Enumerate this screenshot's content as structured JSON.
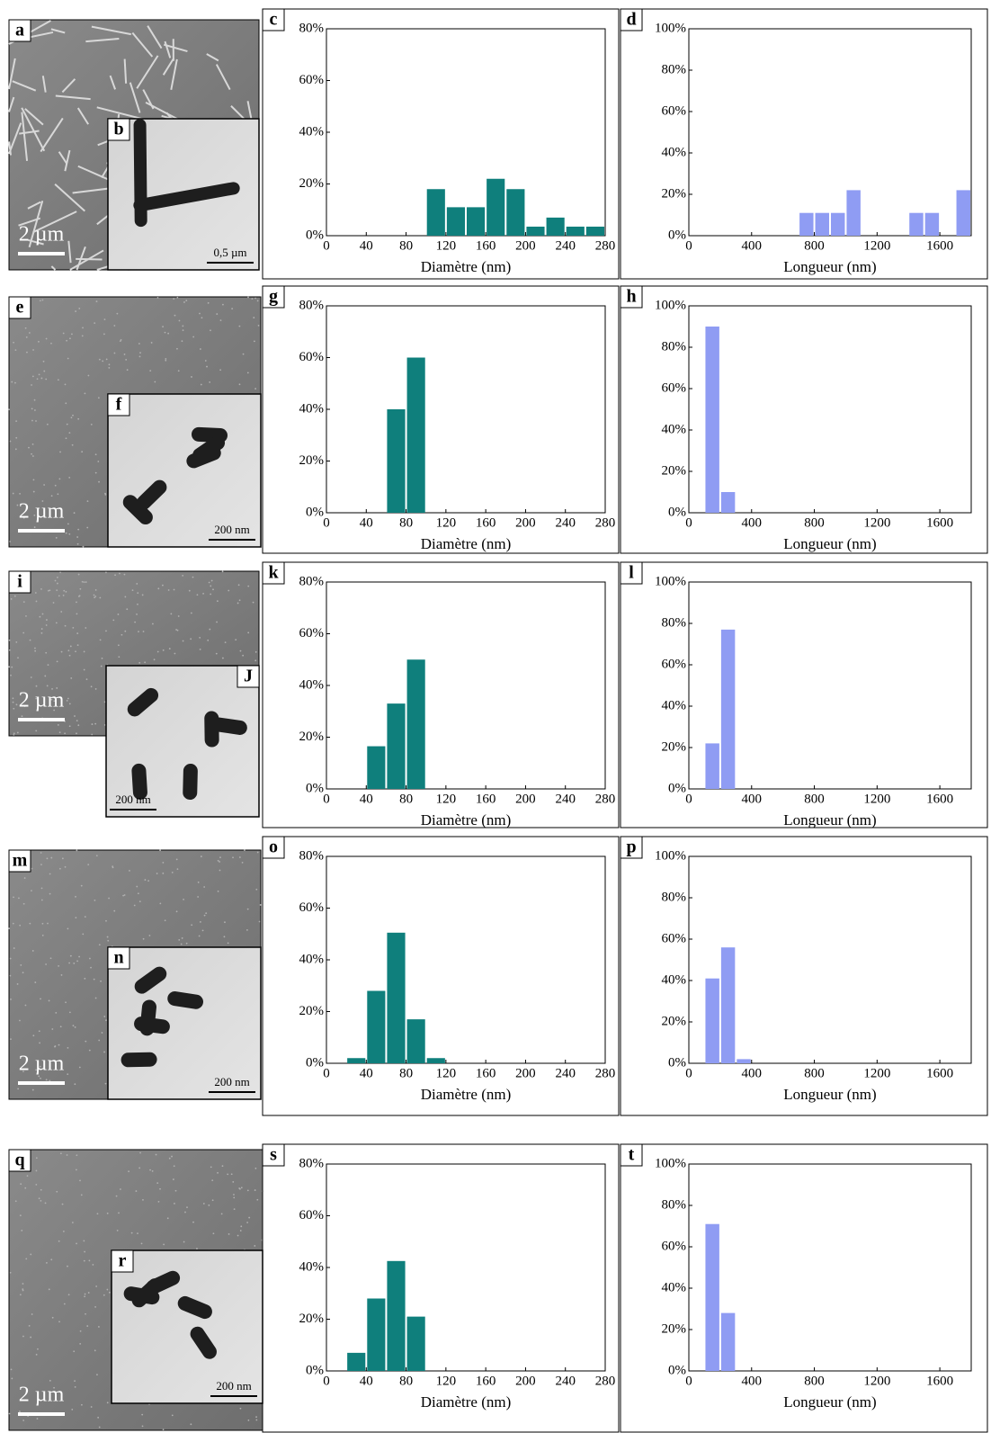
{
  "chart_data": [
    {
      "type": "histogram",
      "label": "c",
      "xlabel": "Diamètre (nm)",
      "color": "#0f7f7c",
      "bins": [
        100,
        120,
        140,
        160,
        180,
        200,
        220,
        240,
        260,
        280
      ],
      "values": [
        18,
        11,
        11,
        22,
        18,
        3.5,
        7,
        3.5,
        3.5
      ],
      "xlim": [
        0,
        280
      ],
      "xticks": [
        0,
        40,
        80,
        120,
        160,
        200,
        240,
        280
      ],
      "ylim": [
        0,
        80
      ],
      "yticks": [
        {
          "value": 0,
          "label": "0%"
        },
        {
          "value": 20,
          "label": "20%"
        },
        {
          "value": 40,
          "label": "40%"
        },
        {
          "value": 60,
          "label": "60%"
        },
        {
          "value": 80,
          "label": "80%"
        }
      ]
    },
    {
      "type": "histogram",
      "label": "d",
      "xlabel": "Longueur (nm)",
      "color": "#8f9cf3",
      "bins": [
        700,
        800,
        900,
        1000,
        1100,
        1200,
        1300,
        1400,
        1500,
        1600,
        1700,
        1800
      ],
      "values": [
        11,
        11,
        11,
        22,
        0,
        0,
        0,
        11,
        11,
        0,
        22
      ],
      "xlim": [
        0,
        1800
      ],
      "xticks": [
        0,
        400,
        800,
        1200,
        1600
      ],
      "ylim": [
        0,
        100
      ],
      "yticks": [
        {
          "value": 0,
          "label": "0%"
        },
        {
          "value": 20,
          "label": "20%"
        },
        {
          "value": 40,
          "label": "40%"
        },
        {
          "value": 60,
          "label": "60%"
        },
        {
          "value": 80,
          "label": "80%"
        },
        {
          "value": 100,
          "label": "100%"
        }
      ]
    },
    {
      "type": "histogram",
      "label": "g",
      "xlabel": "Diamètre (nm)",
      "color": "#0f7f7c",
      "bins": [
        60,
        80,
        100
      ],
      "values": [
        40,
        60
      ],
      "xlim": [
        0,
        280
      ],
      "xticks": [
        0,
        40,
        80,
        120,
        160,
        200,
        240,
        280
      ],
      "ylim": [
        0,
        80
      ],
      "yticks": [
        {
          "value": 0,
          "label": "0%"
        },
        {
          "value": 20,
          "label": "20%"
        },
        {
          "value": 40,
          "label": "40%"
        },
        {
          "value": 60,
          "label": "60%"
        },
        {
          "value": 80,
          "label": "80%"
        }
      ]
    },
    {
      "type": "histogram",
      "label": "h",
      "xlabel": "Longueur (nm)",
      "color": "#8f9cf3",
      "bins": [
        100,
        200,
        300
      ],
      "values": [
        90,
        10
      ],
      "xlim": [
        0,
        1800
      ],
      "xticks": [
        0,
        400,
        800,
        1200,
        1600
      ],
      "ylim": [
        0,
        100
      ],
      "yticks": [
        {
          "value": 0,
          "label": "0%"
        },
        {
          "value": 20,
          "label": "20%"
        },
        {
          "value": 40,
          "label": "40%"
        },
        {
          "value": 60,
          "label": "60%"
        },
        {
          "value": 80,
          "label": "80%"
        },
        {
          "value": 100,
          "label": "100%"
        }
      ]
    },
    {
      "type": "histogram",
      "label": "k",
      "xlabel": "Diamètre (nm)",
      "color": "#0f7f7c",
      "bins": [
        40,
        60,
        80,
        100
      ],
      "values": [
        16.5,
        33,
        50
      ],
      "xlim": [
        0,
        280
      ],
      "xticks": [
        0,
        40,
        80,
        120,
        160,
        200,
        240,
        280
      ],
      "ylim": [
        0,
        80
      ],
      "yticks": [
        {
          "value": 0,
          "label": "0%"
        },
        {
          "value": 20,
          "label": "20%"
        },
        {
          "value": 40,
          "label": "40%"
        },
        {
          "value": 60,
          "label": "60%"
        },
        {
          "value": 80,
          "label": "80%"
        }
      ]
    },
    {
      "type": "histogram",
      "label": "l",
      "xlabel": "Longueur (nm)",
      "color": "#8f9cf3",
      "bins": [
        100,
        200,
        300
      ],
      "values": [
        22,
        77
      ],
      "xlim": [
        0,
        1800
      ],
      "xticks": [
        0,
        400,
        800,
        1200,
        1600
      ],
      "ylim": [
        0,
        100
      ],
      "yticks": [
        {
          "value": 0,
          "label": "0%"
        },
        {
          "value": 20,
          "label": "20%"
        },
        {
          "value": 40,
          "label": "40%"
        },
        {
          "value": 60,
          "label": "60%"
        },
        {
          "value": 80,
          "label": "80%"
        },
        {
          "value": 100,
          "label": "100%"
        }
      ]
    },
    {
      "type": "histogram",
      "label": "o",
      "xlabel": "Diamètre (nm)",
      "color": "#0f7f7c",
      "bins": [
        20,
        40,
        60,
        80,
        100,
        120
      ],
      "values": [
        2,
        28,
        50.5,
        17,
        2
      ],
      "xlim": [
        0,
        280
      ],
      "xticks": [
        0,
        40,
        80,
        120,
        160,
        200,
        240,
        280
      ],
      "ylim": [
        0,
        80
      ],
      "yticks": [
        {
          "value": 0,
          "label": "0%"
        },
        {
          "value": 20,
          "label": "20%"
        },
        {
          "value": 40,
          "label": "40%"
        },
        {
          "value": 60,
          "label": "60%"
        },
        {
          "value": 80,
          "label": "80%"
        }
      ]
    },
    {
      "type": "histogram",
      "label": "p",
      "xlabel": "Longueur (nm)",
      "color": "#8f9cf3",
      "bins": [
        100,
        200,
        300,
        400
      ],
      "values": [
        41,
        56,
        2
      ],
      "xlim": [
        0,
        1800
      ],
      "xticks": [
        0,
        400,
        800,
        1200,
        1600
      ],
      "ylim": [
        0,
        100
      ],
      "yticks": [
        {
          "value": 0,
          "label": "0%"
        },
        {
          "value": 20,
          "label": "20%"
        },
        {
          "value": 40,
          "label": "40%"
        },
        {
          "value": 60,
          "label": "60%"
        },
        {
          "value": 80,
          "label": "80%"
        },
        {
          "value": 100,
          "label": "100%"
        }
      ]
    },
    {
      "type": "histogram",
      "label": "s",
      "xlabel": "Diamètre (nm)",
      "color": "#0f7f7c",
      "bins": [
        20,
        40,
        60,
        80,
        100
      ],
      "values": [
        7,
        28,
        42.5,
        21
      ],
      "xlim": [
        0,
        280
      ],
      "xticks": [
        0,
        40,
        80,
        120,
        160,
        200,
        240,
        280
      ],
      "ylim": [
        0,
        80
      ],
      "yticks": [
        {
          "value": 0,
          "label": "0%"
        },
        {
          "value": 20,
          "label": "20%"
        },
        {
          "value": 40,
          "label": "40%"
        },
        {
          "value": 60,
          "label": "60%"
        },
        {
          "value": 80,
          "label": "80%"
        }
      ]
    },
    {
      "type": "histogram",
      "label": "t",
      "xlabel": "Longueur (nm)",
      "color": "#8f9cf3",
      "bins": [
        100,
        200,
        300
      ],
      "values": [
        71,
        28
      ],
      "xlim": [
        0,
        1800
      ],
      "xticks": [
        0,
        400,
        800,
        1200,
        1600
      ],
      "ylim": [
        0,
        100
      ],
      "yticks": [
        {
          "value": 0,
          "label": "0%"
        },
        {
          "value": 20,
          "label": "20%"
        },
        {
          "value": 40,
          "label": "40%"
        },
        {
          "value": 60,
          "label": "60%"
        },
        {
          "value": 80,
          "label": "80%"
        },
        {
          "value": 100,
          "label": "100%"
        }
      ]
    }
  ],
  "images": [
    {
      "label": "a",
      "scale": "2 µm",
      "inset": {
        "label": "b",
        "scale": "0,5 µm"
      }
    },
    {
      "label": "e",
      "scale": "2 µm",
      "inset": {
        "label": "f",
        "scale": "200 nm"
      }
    },
    {
      "label": "i",
      "scale": "2 µm",
      "inset": {
        "label": "J",
        "scale": "200 nm"
      }
    },
    {
      "label": "m",
      "scale": "2 µm",
      "inset": {
        "label": "n",
        "scale": "200 nm"
      }
    },
    {
      "label": "q",
      "scale": "2 µm",
      "inset": {
        "label": "r",
        "scale": "200 nm"
      }
    }
  ]
}
